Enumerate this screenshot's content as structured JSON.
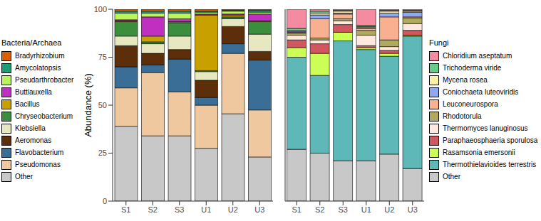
{
  "chart_data": [
    {
      "type": "bar",
      "stacked": true,
      "legend": "left",
      "legend_title": "Bacteria/Archaea",
      "y_label": "Abundance (%)",
      "categories": [
        "S1",
        "S2",
        "S3",
        "U1",
        "U2",
        "U3"
      ],
      "ylim": [
        0,
        100
      ],
      "yticks": [
        0,
        25,
        50,
        75,
        100
      ],
      "series": [
        {
          "name": "Other",
          "color": "#c8c8c8",
          "values": [
            39,
            34,
            34,
            27.5,
            45.5,
            23
          ]
        },
        {
          "name": "Pseudomonas",
          "color": "#efc8a0",
          "values": [
            20,
            33,
            23,
            22.5,
            31.5,
            24.5
          ]
        },
        {
          "name": "Flavobacterium",
          "color": "#3a6e96",
          "values": [
            11,
            4,
            17,
            4,
            5,
            26
          ]
        },
        {
          "name": "Aeromonas",
          "color": "#5c2e0a",
          "values": [
            11,
            6,
            5,
            9,
            9,
            4.5
          ]
        },
        {
          "name": "Klebsiella",
          "color": "#e8e8c0",
          "values": [
            5,
            5,
            7,
            4.5,
            4,
            9
          ]
        },
        {
          "name": "Chryseobacterium",
          "color": "#3b8e3b",
          "values": [
            7.5,
            1,
            7,
            0.5,
            1,
            6.5
          ]
        },
        {
          "name": "Bacillus",
          "color": "#c8a000",
          "values": [
            0.5,
            3,
            0.5,
            29,
            1,
            0.5
          ]
        },
        {
          "name": "Buttiauxella",
          "color": "#c02fc0",
          "values": [
            0.5,
            10,
            1.5,
            0.5,
            0.5,
            3.5
          ]
        },
        {
          "name": "Pseudarthrobacter",
          "color": "#bbf55c",
          "values": [
            3.5,
            2,
            3,
            1,
            1.5,
            1
          ]
        },
        {
          "name": "Amycolatopsis",
          "color": "#1b9e77",
          "values": [
            1,
            1,
            1,
            0.5,
            0.5,
            1
          ]
        },
        {
          "name": "Bradyrhizobium",
          "color": "#d95f02",
          "values": [
            1,
            1,
            1,
            1,
            0.5,
            0.5
          ]
        }
      ]
    },
    {
      "type": "bar",
      "stacked": true,
      "legend": "right",
      "legend_title": "Fungi",
      "tick_labels": "x",
      "categories": [
        "S1",
        "S2",
        "S3",
        "U1",
        "U2",
        "U3"
      ],
      "ylim": [
        0,
        100
      ],
      "yticks": [
        0,
        25,
        50,
        75,
        100
      ],
      "series": [
        {
          "name": "Other",
          "color": "#c8c8c8",
          "values": [
            27,
            25,
            21,
            21,
            24.5,
            17
          ]
        },
        {
          "name": "Thermothielavioides terrestris",
          "color": "#5fb8b8",
          "values": [
            48,
            40.5,
            62.5,
            58,
            51,
            69
          ]
        },
        {
          "name": "Rasamsonia emersonii",
          "color": "#ccff55",
          "values": [
            5,
            11.5,
            4.5,
            1,
            1.5,
            0.5
          ]
        },
        {
          "name": "Paraphaeosphaeria sporulosa",
          "color": "#d0575f",
          "values": [
            4,
            5,
            4,
            1,
            1.5,
            2.5
          ]
        },
        {
          "name": "Thermomyces lanuginosus",
          "color": "#ffe8dd",
          "values": [
            2.5,
            2,
            2,
            5.5,
            2,
            3.5
          ]
        },
        {
          "name": "Rhodotorula",
          "color": "#b0aa60",
          "values": [
            1,
            1,
            1,
            2.5,
            3.5,
            3
          ]
        },
        {
          "name": "Leuconeurospora",
          "color": "#f8b090",
          "values": [
            0.5,
            10,
            2.5,
            1,
            12,
            0.5
          ]
        },
        {
          "name": "Coniochaeta luteoviridis",
          "color": "#8fa8f0",
          "values": [
            0.5,
            2,
            0.5,
            0.5,
            2,
            2.5
          ]
        },
        {
          "name": "Mycena rosea",
          "color": "#fff0a8",
          "values": [
            0.5,
            1,
            1,
            0.5,
            1,
            0.5
          ]
        },
        {
          "name": "Trichoderma viride",
          "color": "#66cc88",
          "values": [
            1,
            1,
            0.5,
            0.5,
            0.5,
            0.5
          ]
        },
        {
          "name": "Chloridium aseptatum",
          "color": "#f58ba0",
          "values": [
            10,
            1,
            0.5,
            8.5,
            0.5,
            0.5
          ]
        }
      ]
    }
  ]
}
